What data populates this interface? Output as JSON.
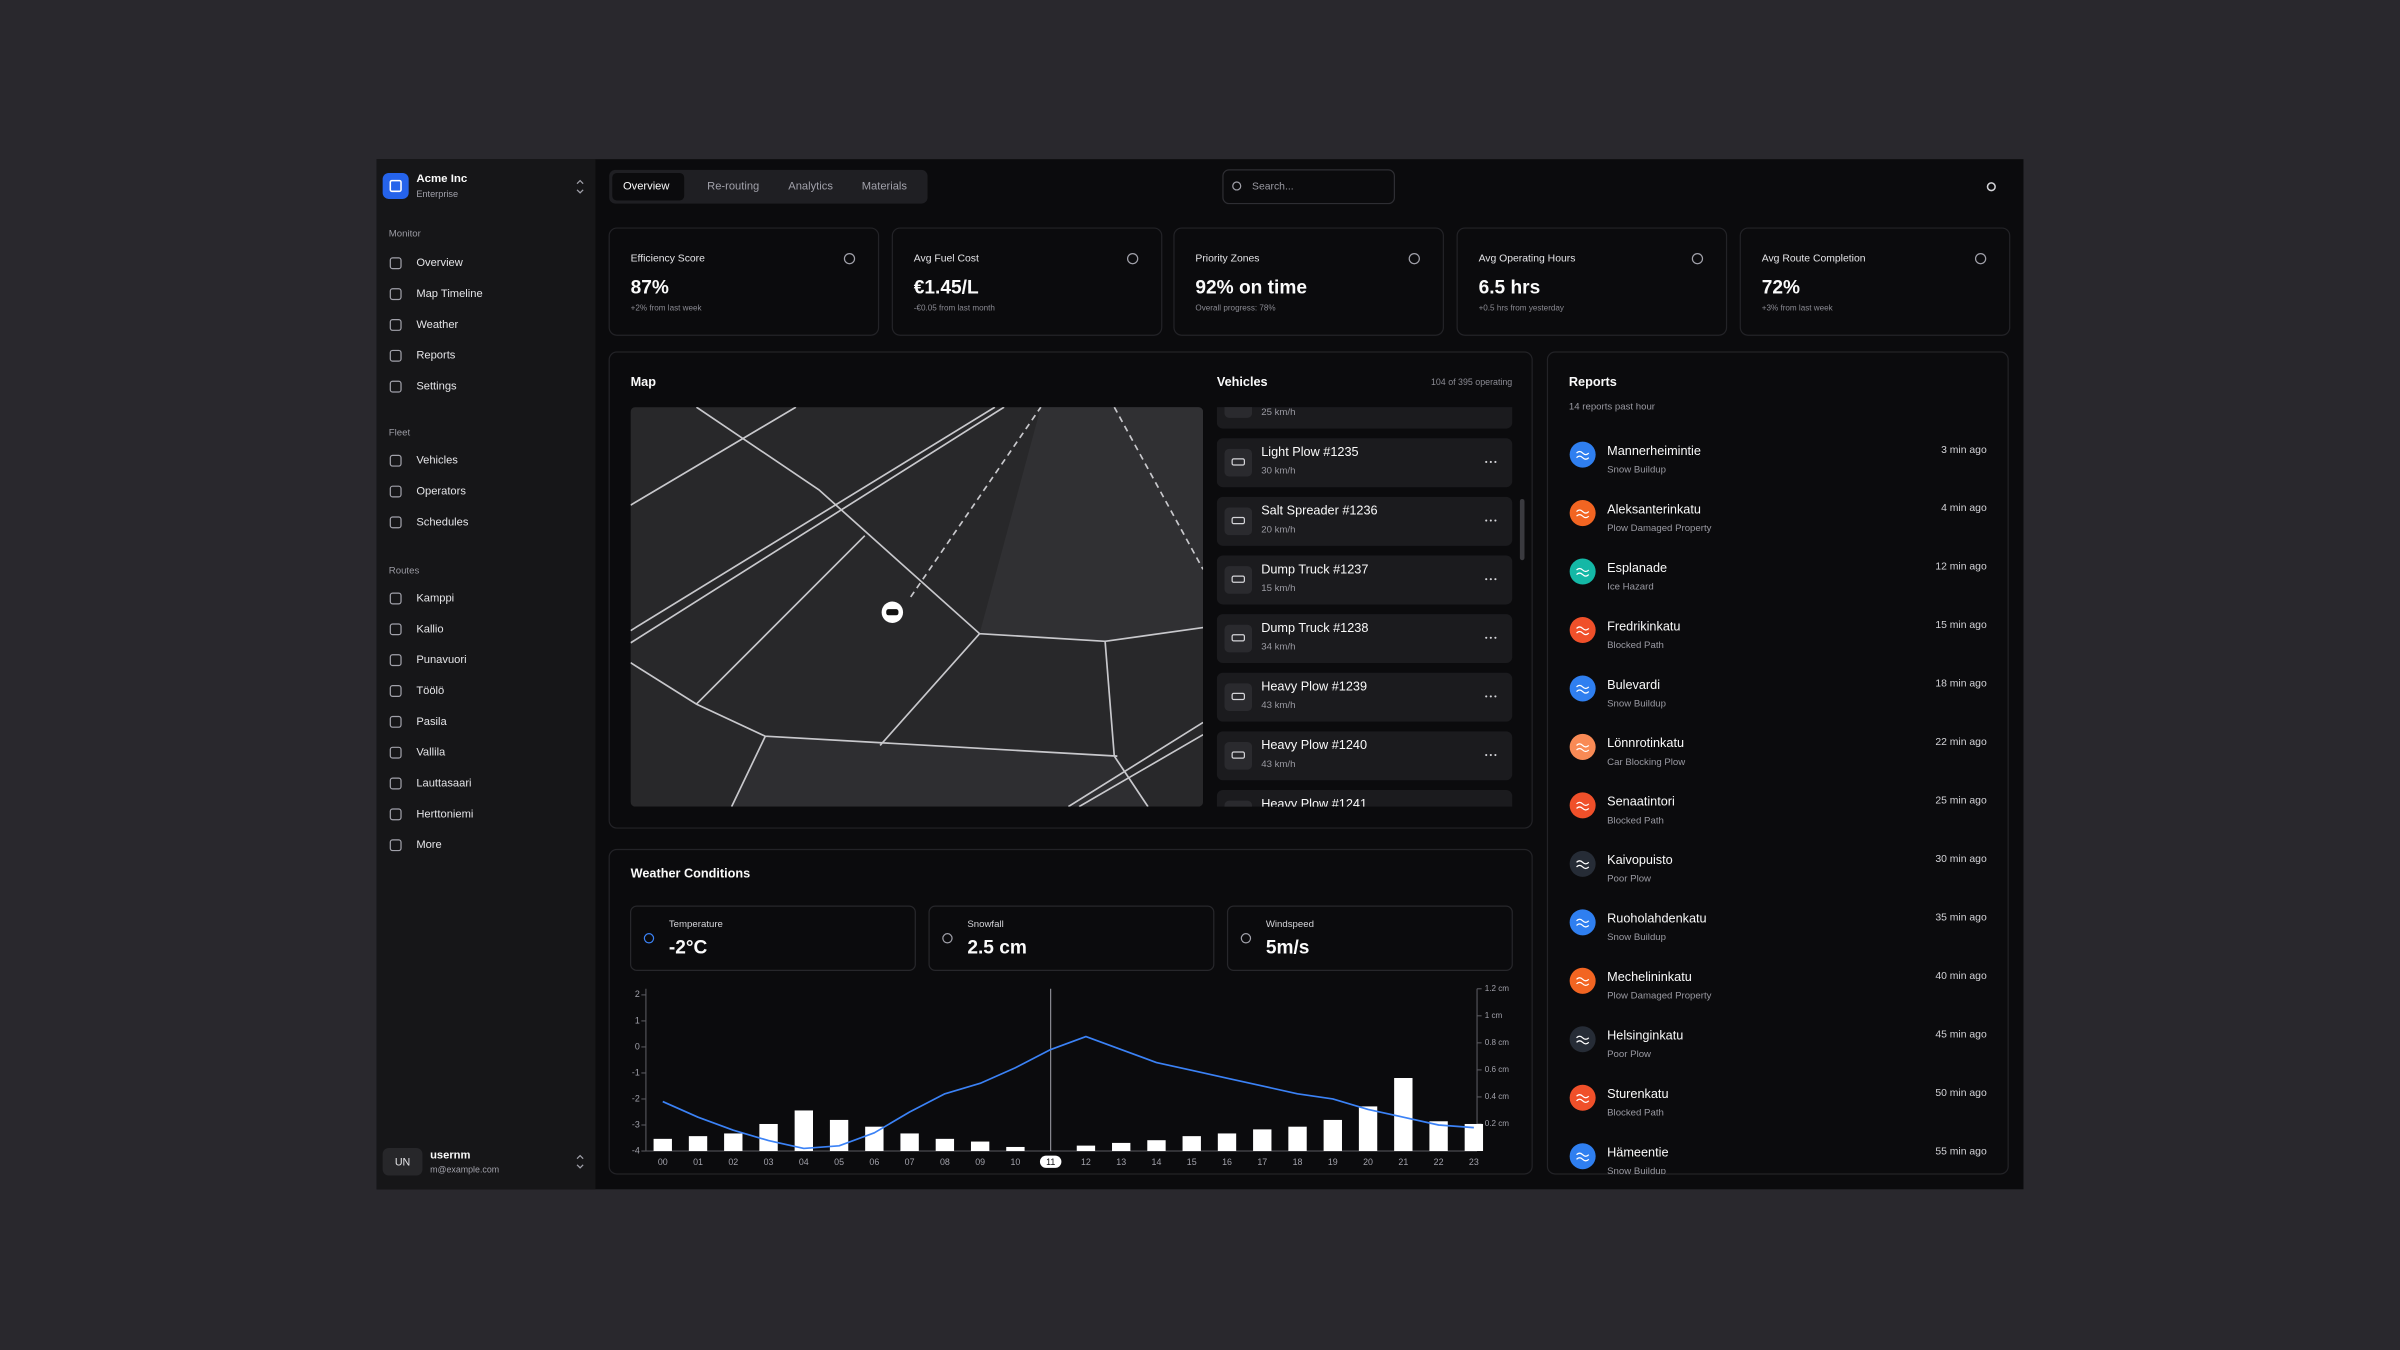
{
  "sidebar": {
    "org": "Acme Inc",
    "plan": "Enterprise",
    "sections": [
      {
        "label": "Monitor",
        "items": [
          "Overview",
          "Map Timeline",
          "Weather",
          "Reports",
          "Settings"
        ]
      },
      {
        "label": "Fleet",
        "items": [
          "Vehicles",
          "Operators",
          "Schedules"
        ]
      },
      {
        "label": "Routes",
        "items": [
          "Kamppi",
          "Kallio",
          "Punavuori",
          "Töölö",
          "Pasila",
          "Vallila",
          "Lauttasaari",
          "Herttoniemi",
          "More"
        ]
      }
    ],
    "user": {
      "initials": "UN",
      "name": "usernm",
      "email": "m@example.com"
    }
  },
  "tabs": [
    "Overview",
    "Re-routing",
    "Analytics",
    "Materials"
  ],
  "search_placeholder": "Search...",
  "kpis": [
    {
      "title": "Efficiency Score",
      "value": "87%",
      "note": "+2% from last week"
    },
    {
      "title": "Avg Fuel Cost",
      "value": "€1.45/L",
      "note": "-€0.05 from last month"
    },
    {
      "title": "Priority Zones",
      "value": "92% on time",
      "note": "Overall progress: 78%"
    },
    {
      "title": "Avg Operating Hours",
      "value": "6.5 hrs",
      "note": "+0.5 hrs from yesterday"
    },
    {
      "title": "Avg Route Completion",
      "value": "72%",
      "note": "+3% from last week"
    }
  ],
  "map": {
    "title": "Map"
  },
  "vehicles": {
    "title": "Vehicles",
    "summary": "104 of 395 operating",
    "items": [
      {
        "speed": "25 km/h"
      },
      {
        "name": "Light Plow #1235",
        "speed": "30 km/h"
      },
      {
        "name": "Salt Spreader #1236",
        "speed": "20 km/h"
      },
      {
        "name": "Dump Truck #1237",
        "speed": "15 km/h"
      },
      {
        "name": "Dump Truck #1238",
        "speed": "34 km/h"
      },
      {
        "name": "Heavy Plow #1239",
        "speed": "43 km/h"
      },
      {
        "name": "Heavy Plow #1240",
        "speed": "43 km/h"
      },
      {
        "name": "Heavy Plow #1241"
      }
    ]
  },
  "weather": {
    "title": "Weather Conditions",
    "cards": [
      {
        "label": "Temperature",
        "value": "-2°C"
      },
      {
        "label": "Snowfall",
        "value": "2.5 cm"
      },
      {
        "label": "Windspeed",
        "value": "5m/s"
      }
    ]
  },
  "chart_data": {
    "type": "bar",
    "categories": [
      "00",
      "01",
      "02",
      "03",
      "04",
      "05",
      "06",
      "07",
      "08",
      "09",
      "10",
      "11",
      "12",
      "13",
      "14",
      "15",
      "16",
      "17",
      "18",
      "19",
      "20",
      "21",
      "22",
      "23"
    ],
    "selected_index": 11,
    "series": [
      {
        "type": "bar",
        "axis": "y2",
        "color": "#ffffff",
        "values": [
          0.09,
          0.11,
          0.13,
          0.2,
          0.3,
          0.23,
          0.18,
          0.13,
          0.09,
          0.07,
          0.03,
          null,
          0.04,
          0.06,
          0.08,
          0.11,
          0.13,
          0.16,
          0.18,
          0.23,
          0.33,
          0.54,
          0.22,
          0.2
        ]
      },
      {
        "type": "line",
        "color": "#3b82f6",
        "values": [
          -2.1,
          -2.7,
          -3.2,
          -3.6,
          -3.9,
          -3.8,
          -3.3,
          -2.5,
          -1.8,
          -1.4,
          -0.8,
          -0.1,
          0.4,
          -0.1,
          -0.6,
          -0.9,
          -1.2,
          -1.5,
          -1.8,
          -2.0,
          -2.4,
          -2.7,
          -3.0,
          -3.1
        ]
      }
    ],
    "ylim": [
      -4,
      2
    ],
    "yticks": [
      2,
      1,
      0,
      -1,
      -2,
      -3,
      -4
    ],
    "y2lim": [
      0,
      1.2
    ],
    "y2ticks": [
      {
        "value": 1.2,
        "label": "1.2 cm"
      },
      {
        "value": 1,
        "label": "1 cm"
      },
      {
        "value": 0.8,
        "label": "0.8 cm"
      },
      {
        "value": 0.6,
        "label": "0.6 cm"
      },
      {
        "value": 0.4,
        "label": "0.4 cm"
      },
      {
        "value": 0.2,
        "label": "0.2 cm"
      }
    ]
  },
  "reports": {
    "title": "Reports",
    "subtitle": "14 reports past hour",
    "items": [
      {
        "name": "Mannerheimintie",
        "issue": "Snow Buildup",
        "time": "3 min ago",
        "color": "#2f7ff0"
      },
      {
        "name": "Aleksanterinkatu",
        "issue": "Plow Damaged Property",
        "time": "4 min ago",
        "color": "#f26522"
      },
      {
        "name": "Esplanade",
        "issue": "Ice Hazard",
        "time": "12 min ago",
        "color": "#14b8a6"
      },
      {
        "name": "Fredrikinkatu",
        "issue": "Blocked Path",
        "time": "15 min ago",
        "color": "#f0502a"
      },
      {
        "name": "Bulevardi",
        "issue": "Snow Buildup",
        "time": "18 min ago",
        "color": "#2f7ff0"
      },
      {
        "name": "Lönnrotinkatu",
        "issue": "Car Blocking Plow",
        "time": "22 min ago",
        "color": "#f98a55"
      },
      {
        "name": "Senaatintori",
        "issue": "Blocked Path",
        "time": "25 min ago",
        "color": "#f0502a"
      },
      {
        "name": "Kaivopuisto",
        "issue": "Poor Plow",
        "time": "30 min ago",
        "color": "#262c36"
      },
      {
        "name": "Ruoholahdenkatu",
        "issue": "Snow Buildup",
        "time": "35 min ago",
        "color": "#2f7ff0"
      },
      {
        "name": "Mechelininkatu",
        "issue": "Plow Damaged Property",
        "time": "40 min ago",
        "color": "#f26522"
      },
      {
        "name": "Helsinginkatu",
        "issue": "Poor Plow",
        "time": "45 min ago",
        "color": "#262c36"
      },
      {
        "name": "Sturenkatu",
        "issue": "Blocked Path",
        "time": "50 min ago",
        "color": "#f0502a"
      },
      {
        "name": "Hämeentie",
        "issue": "Snow Buildup",
        "time": "55 min ago",
        "color": "#2f7ff0"
      }
    ]
  }
}
